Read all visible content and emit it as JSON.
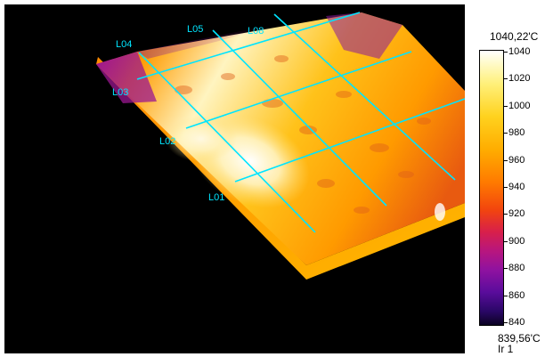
{
  "thermal_image": {
    "line_labels": [
      "L01",
      "L02",
      "L03",
      "L04",
      "L05",
      "L08"
    ],
    "line_color": "#00e5ff"
  },
  "scale": {
    "max_label": "1040,22'C",
    "min_label": "839,56'C",
    "image_name": "Ir 1",
    "ticks": [
      "1040",
      "1020",
      "1000",
      "980",
      "960",
      "940",
      "920",
      "900",
      "880",
      "860",
      "840"
    ]
  }
}
